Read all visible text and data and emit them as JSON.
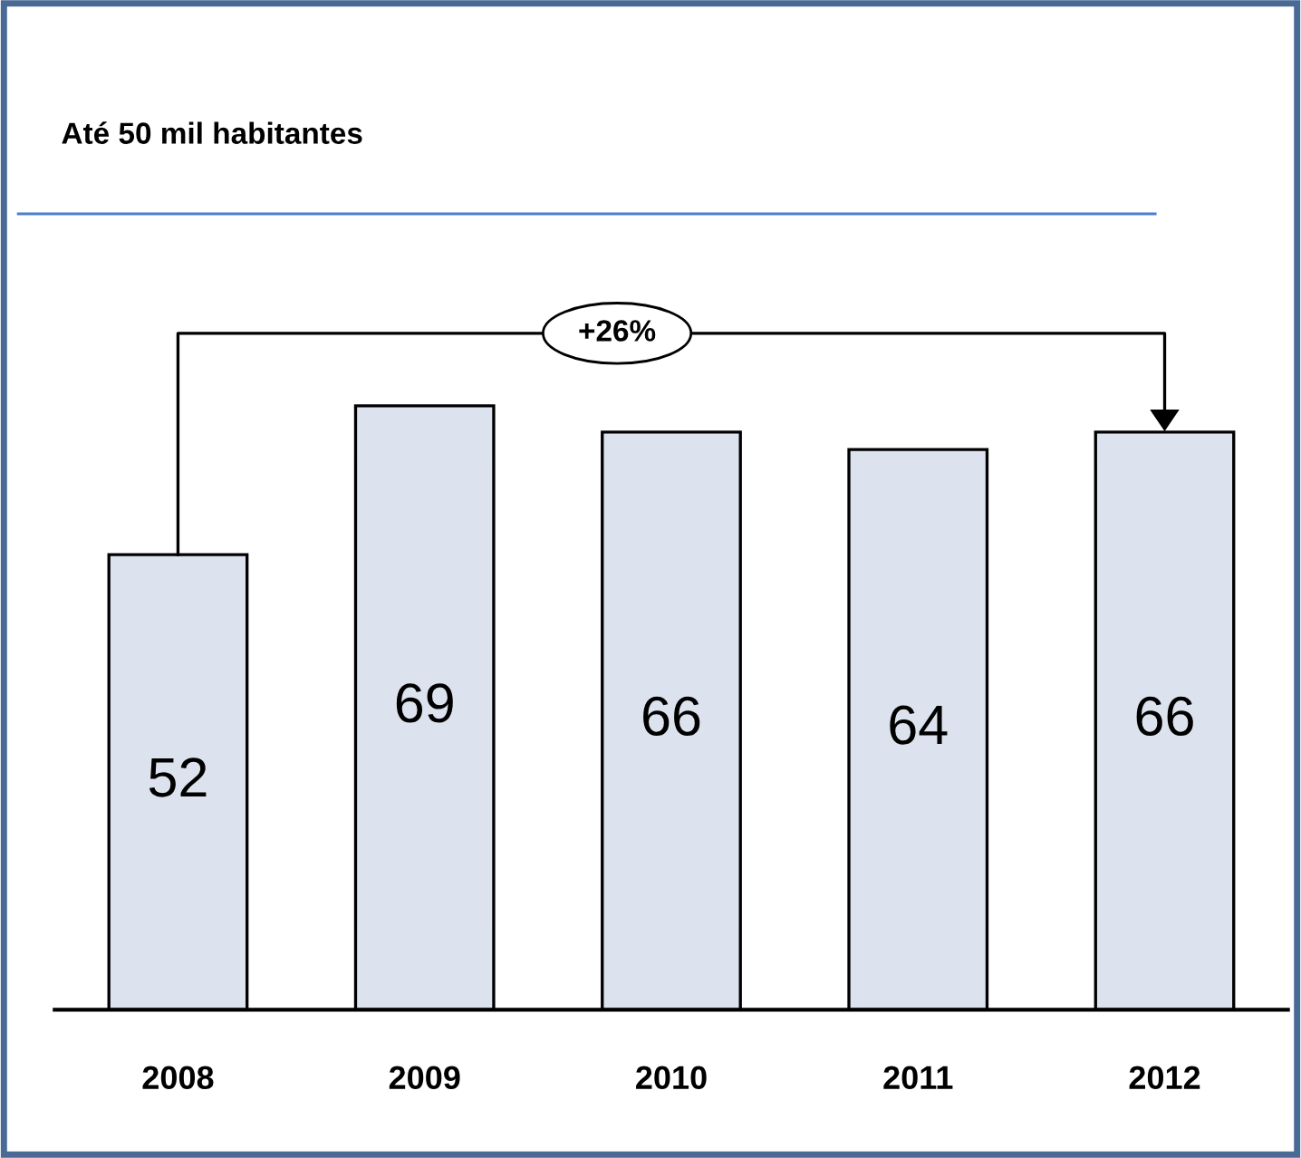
{
  "chart_data": {
    "type": "bar",
    "title": "Até 50 mil habitantes",
    "categories": [
      "2008",
      "2009",
      "2010",
      "2011",
      "2012"
    ],
    "values": [
      52,
      69,
      66,
      64,
      66
    ],
    "color": "#dde3ee",
    "data_labels": true,
    "annotations": [
      "+26%"
    ],
    "grid": false,
    "legend": false
  }
}
